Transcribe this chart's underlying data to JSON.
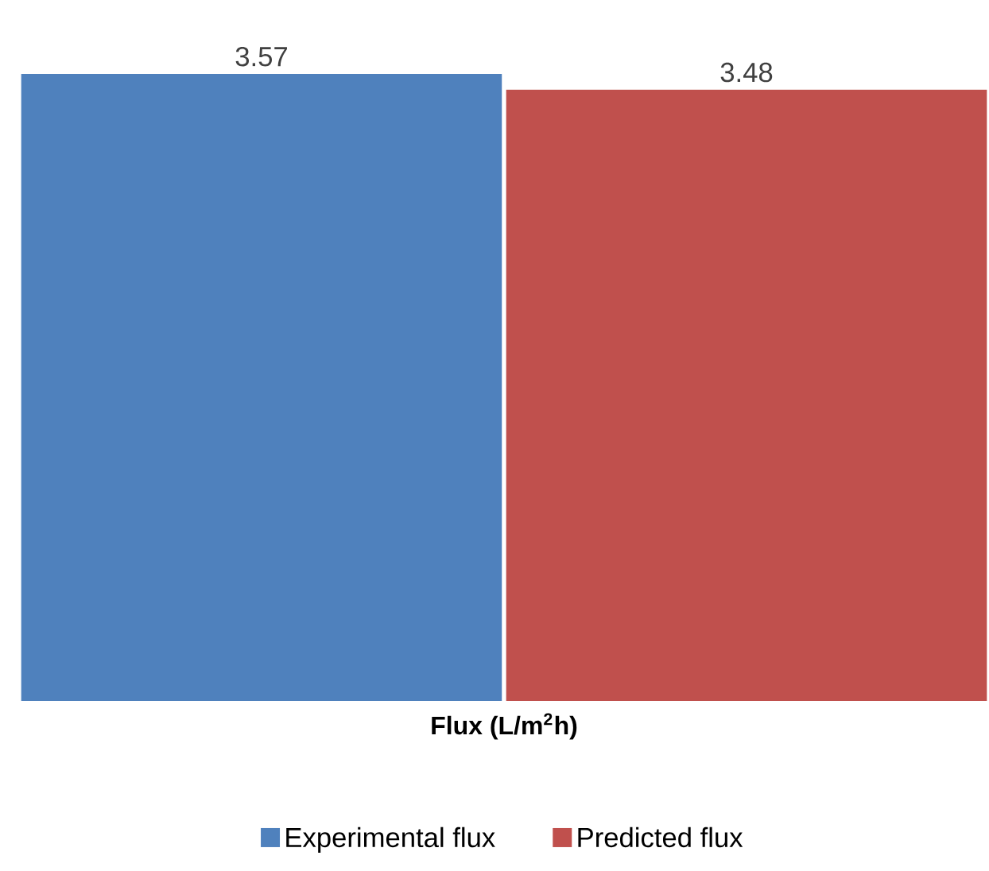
{
  "chart_data": {
    "type": "bar",
    "xlabel": "Flux (L/m$^{2}$h)",
    "categories": [
      null
    ],
    "series": [
      {
        "name": "Experimental flux",
        "color": "#4f81bd",
        "values": [
          3.57
        ]
      },
      {
        "name": "Predicted flux",
        "color": "#c0504d",
        "values": [
          3.48
        ]
      }
    ],
    "data_labels": true,
    "legend": "bottom"
  }
}
